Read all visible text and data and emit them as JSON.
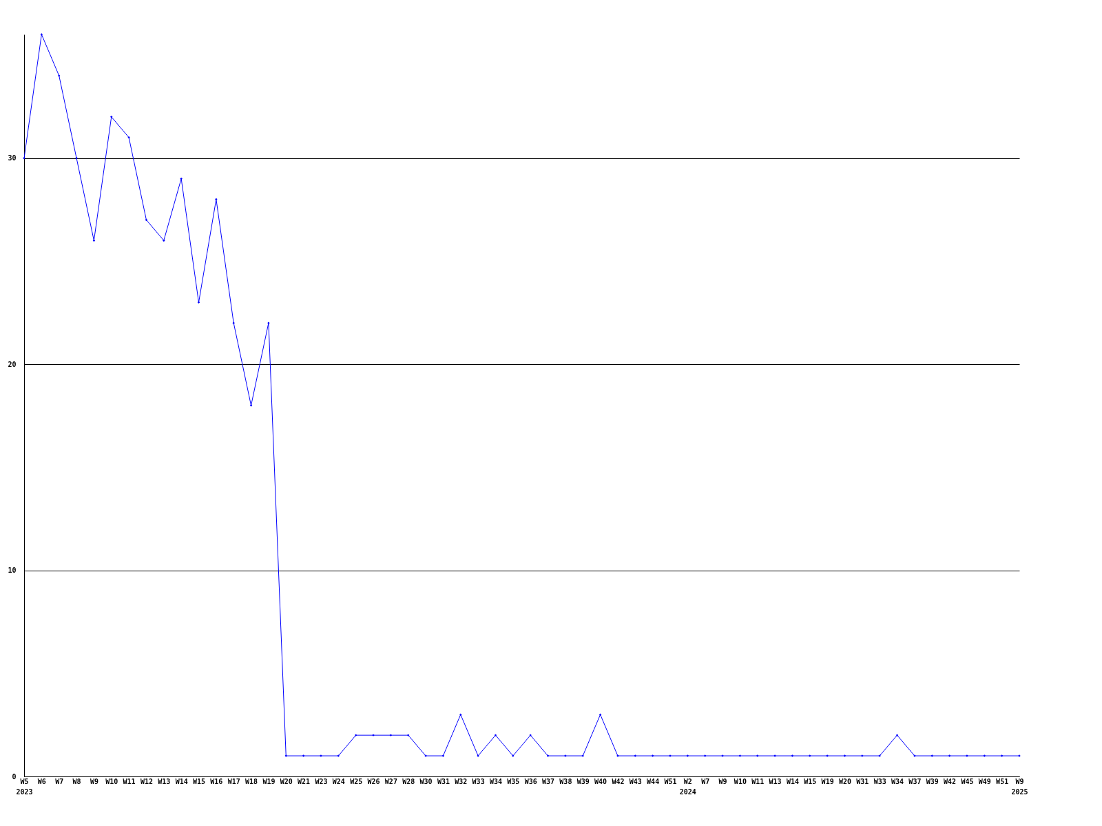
{
  "chart_data": {
    "type": "line",
    "categories": [
      "W5\n2023",
      "W6",
      "W7",
      "W8",
      "W9",
      "W10",
      "W11",
      "W12",
      "W13",
      "W14",
      "W15",
      "W16",
      "W17",
      "W18",
      "W19",
      "W20",
      "W21",
      "W23",
      "W24",
      "W25",
      "W26",
      "W27",
      "W28",
      "W30",
      "W31",
      "W32",
      "W33",
      "W34",
      "W35",
      "W36",
      "W37",
      "W38",
      "W39",
      "W40",
      "W42",
      "W43",
      "W44",
      "W51",
      "W2\n2024",
      "W7",
      "W9",
      "W10",
      "W11",
      "W13",
      "W14",
      "W15",
      "W19",
      "W20",
      "W31",
      "W33",
      "W34",
      "W37",
      "W39",
      "W42",
      "W45",
      "W49",
      "W51",
      "W9\n2025"
    ],
    "series": [
      {
        "color": "#0000ff",
        "values": [
          30,
          36,
          34,
          30,
          26,
          32,
          31,
          27,
          26,
          29,
          23,
          28,
          22,
          18,
          22,
          1,
          1,
          1,
          1,
          2,
          2,
          2,
          2,
          1,
          1,
          3,
          1,
          2,
          1,
          2,
          1,
          1,
          1,
          3,
          1,
          1,
          1,
          1,
          1,
          1,
          1,
          1,
          1,
          1,
          1,
          1,
          1,
          1,
          1,
          1,
          2,
          1,
          1,
          1,
          1,
          1,
          1,
          1
        ]
      }
    ],
    "ylim": [
      0,
      36
    ],
    "yticks": [
      0,
      10,
      20,
      30
    ],
    "grid": "y",
    "marker": "diamond",
    "line_style": "solid"
  }
}
